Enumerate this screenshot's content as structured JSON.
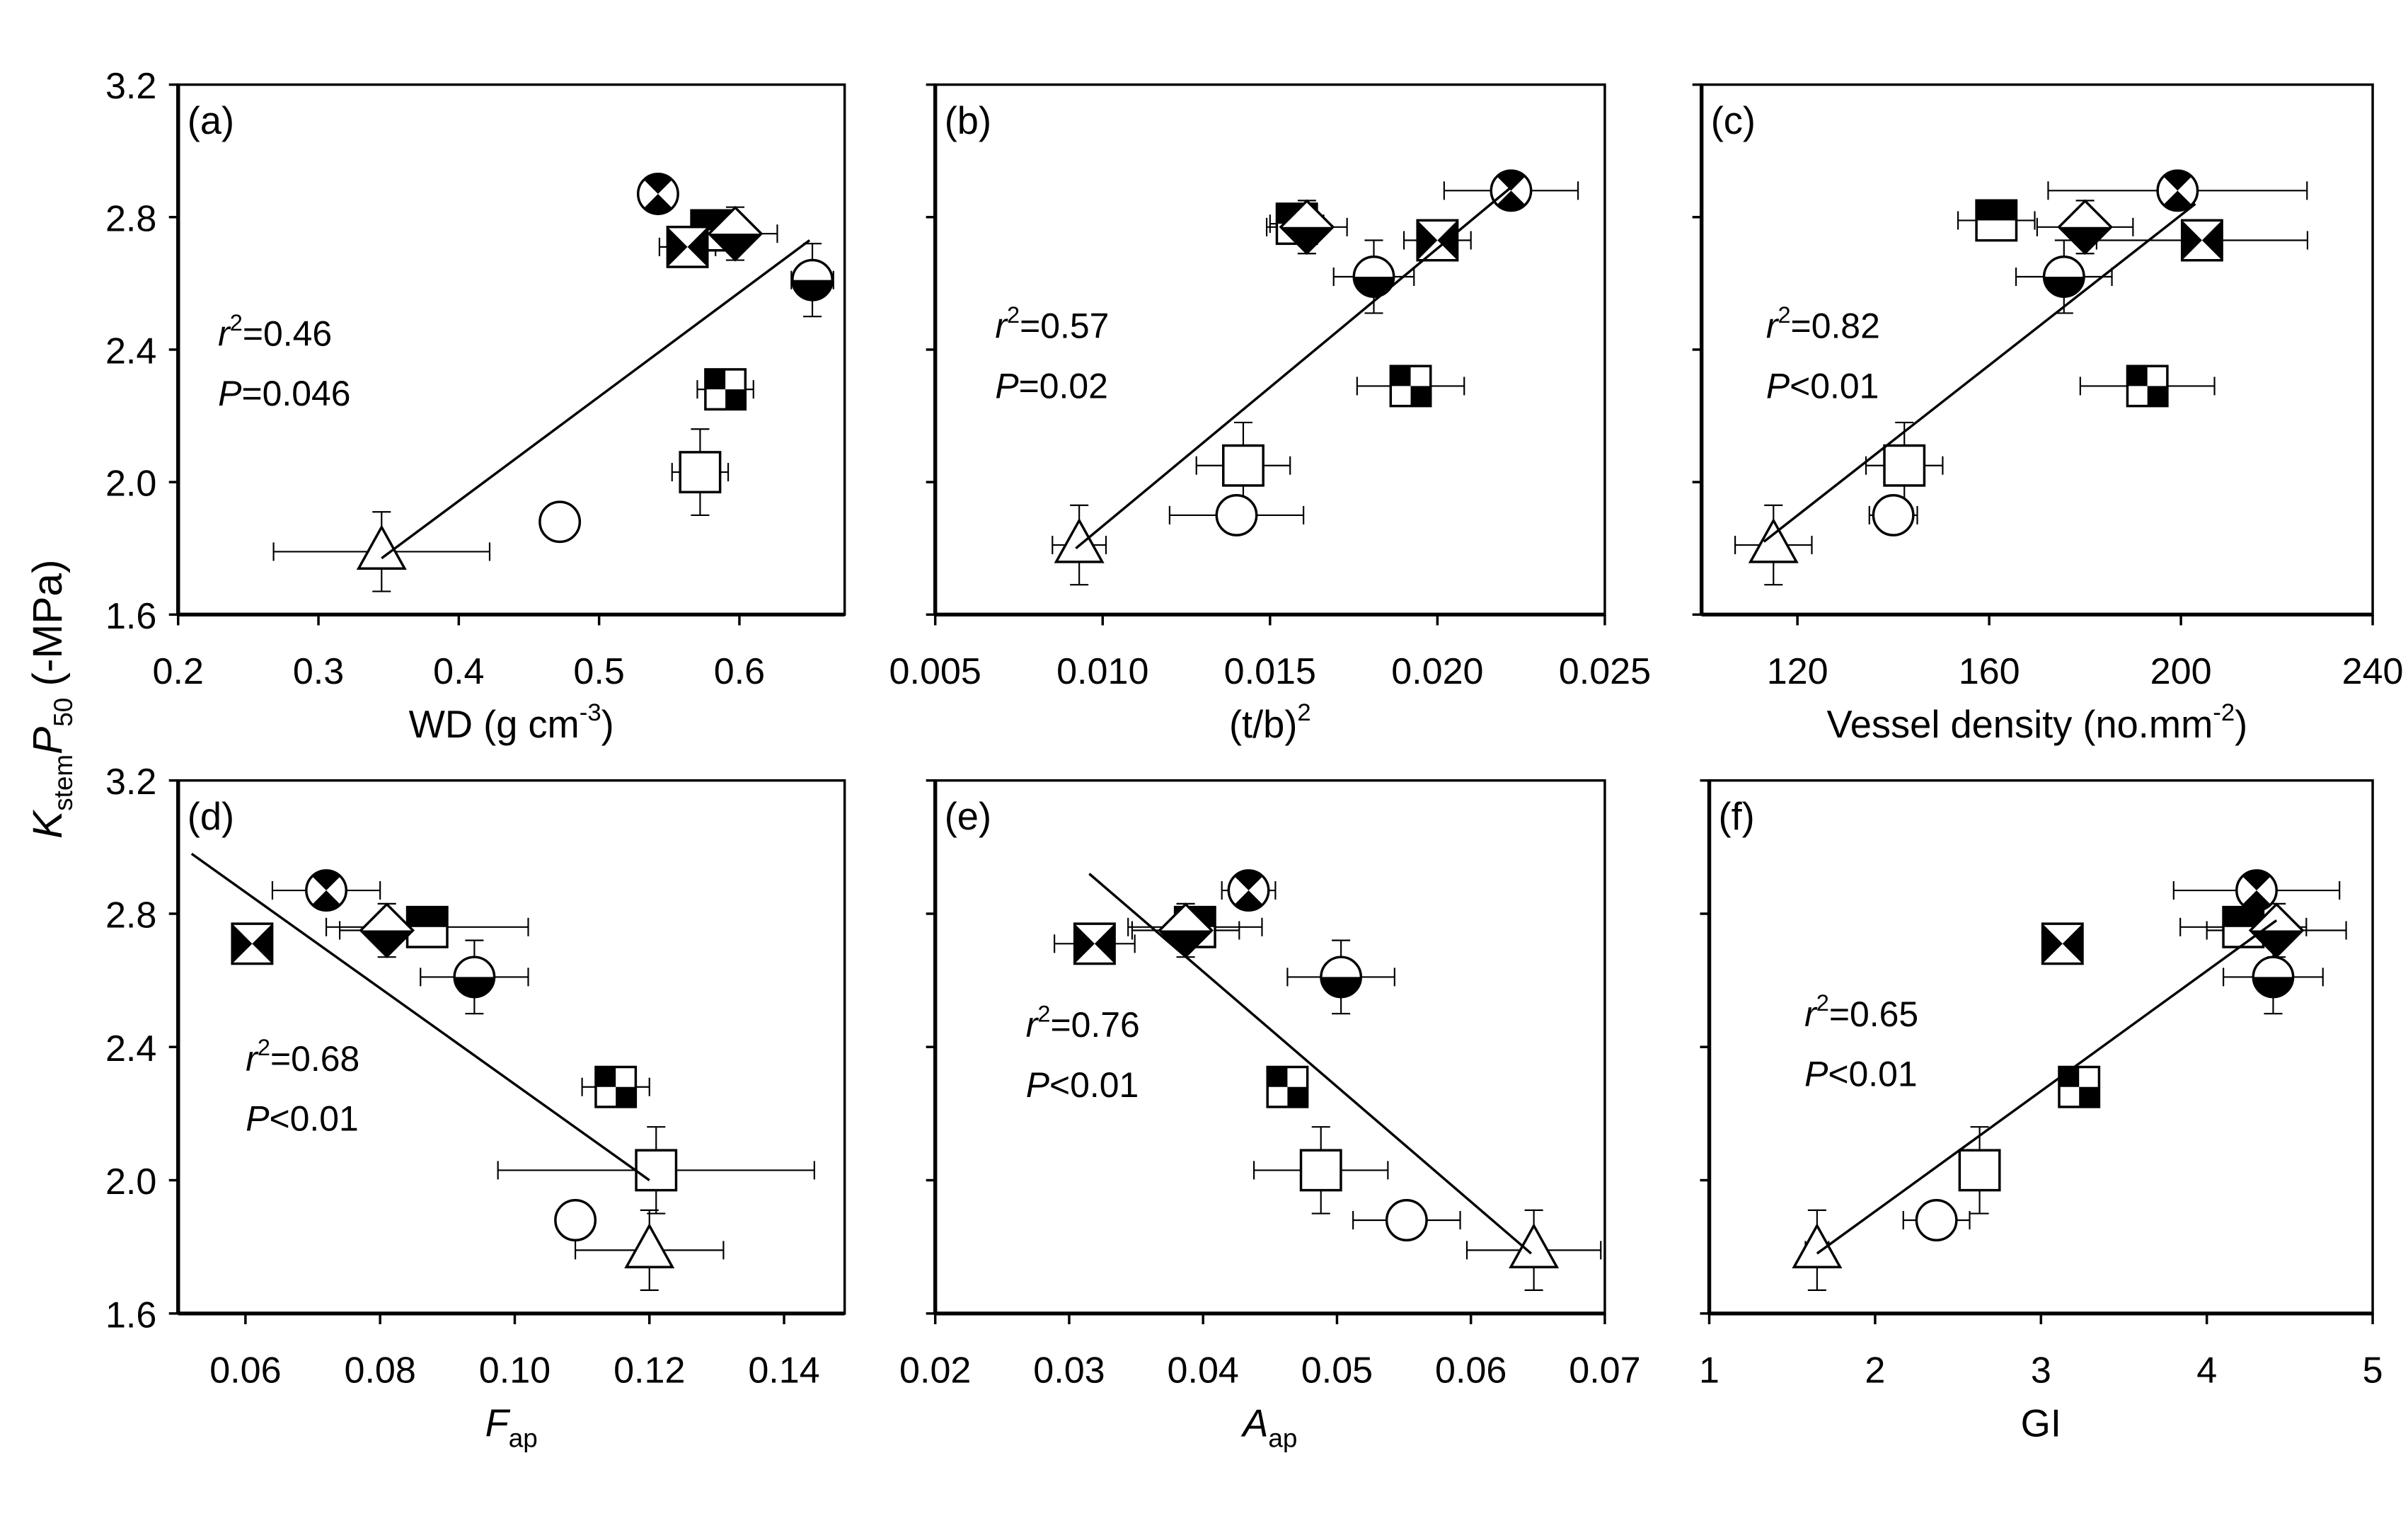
{
  "chart_data": {
    "type": "scatter",
    "ylabel": {
      "main": "K",
      "sub": "stem",
      "main2": "P",
      "sub2": "50",
      "rest": " (-MPa)"
    },
    "ylim": [
      1.6,
      3.2
    ],
    "yticks": [
      1.6,
      2.0,
      2.4,
      2.8,
      3.2
    ],
    "ytick_labels": [
      "1.6",
      "2.0",
      "2.4",
      "2.8",
      "3.2"
    ],
    "panels": [
      {
        "id": "a",
        "label": "(a)",
        "xlabel": "WD (g cm",
        "xlabel_sup": "-3",
        "xlabel_tail": ")",
        "xlim": [
          0.2,
          0.675
        ],
        "xticks": [
          0.2,
          0.3,
          0.4,
          0.5,
          0.6
        ],
        "xtick_labels": [
          "0.2",
          "0.3",
          "0.4",
          "0.5",
          "0.6"
        ],
        "r2": "=0.46",
        "p": "=0.046",
        "fit": [
          [
            0.345,
            1.77
          ],
          [
            0.65,
            2.73
          ]
        ],
        "points": [
          {
            "marker": "triangle",
            "x": 0.345,
            "y": 1.79,
            "xerr": 0.077,
            "yerr": 0.12
          },
          {
            "marker": "circle",
            "x": 0.472,
            "y": 1.88,
            "xerr": 0,
            "yerr": 0
          },
          {
            "marker": "square",
            "x": 0.572,
            "y": 2.03,
            "xerr": 0.02,
            "yerr": 0.13
          },
          {
            "marker": "checker-square",
            "x": 0.59,
            "y": 2.28,
            "xerr": 0.02,
            "yerr": 0.06
          },
          {
            "marker": "half-circle",
            "x": 0.652,
            "y": 2.61,
            "xerr": 0.015,
            "yerr": 0.11
          },
          {
            "marker": "top-half-square",
            "x": 0.58,
            "y": 2.76,
            "xerr": 0.01,
            "yerr": 0.05
          },
          {
            "marker": "half-diamond",
            "x": 0.597,
            "y": 2.75,
            "xerr": 0.03,
            "yerr": 0.08
          },
          {
            "marker": "bowtie-square",
            "x": 0.563,
            "y": 2.71,
            "xerr": 0.02,
            "yerr": 0.06
          },
          {
            "marker": "crossed-circle",
            "x": 0.542,
            "y": 2.87,
            "xerr": 0,
            "yerr": 0.05
          }
        ]
      },
      {
        "id": "b",
        "label": "(b)",
        "xlabel": "(t/b)",
        "xlabel_sup": "2",
        "xlabel_tail": "",
        "xlim": [
          0.005,
          0.025
        ],
        "xticks": [
          0.005,
          0.01,
          0.015,
          0.02,
          0.025
        ],
        "xtick_labels": [
          "0.005",
          "0.010",
          "0.015",
          "0.020",
          "0.025"
        ],
        "r2": "=0.57",
        "p": "=0.02",
        "fit": [
          [
            0.0092,
            1.8
          ],
          [
            0.0222,
            2.89
          ]
        ],
        "points": [
          {
            "marker": "triangle",
            "x": 0.0093,
            "y": 1.81,
            "xerr": 0.0008,
            "yerr": 0.12
          },
          {
            "marker": "circle",
            "x": 0.014,
            "y": 1.9,
            "xerr": 0.002,
            "yerr": 0
          },
          {
            "marker": "square",
            "x": 0.0142,
            "y": 2.05,
            "xerr": 0.0014,
            "yerr": 0.13
          },
          {
            "marker": "checker-square",
            "x": 0.0192,
            "y": 2.29,
            "xerr": 0.0016,
            "yerr": 0.06
          },
          {
            "marker": "half-circle",
            "x": 0.0181,
            "y": 2.62,
            "xerr": 0.0012,
            "yerr": 0.11
          },
          {
            "marker": "top-half-square",
            "x": 0.0158,
            "y": 2.78,
            "xerr": 0.0008,
            "yerr": 0.05
          },
          {
            "marker": "half-diamond",
            "x": 0.0161,
            "y": 2.77,
            "xerr": 0.0012,
            "yerr": 0.08
          },
          {
            "marker": "bowtie-square",
            "x": 0.02,
            "y": 2.73,
            "xerr": 0.001,
            "yerr": 0.06
          },
          {
            "marker": "crossed-circle",
            "x": 0.0222,
            "y": 2.88,
            "xerr": 0.002,
            "yerr": 0.05
          }
        ]
      },
      {
        "id": "c",
        "label": "(c)",
        "xlabel": "Vessel density (no.mm",
        "xlabel_sup": "-2",
        "xlabel_tail": ")",
        "xlim": [
          100,
          240
        ],
        "xticks": [
          120,
          160,
          200,
          240
        ],
        "xtick_labels": [
          "120",
          "160",
          "200",
          "240"
        ],
        "r2": "=0.82",
        "p": "<0.01",
        "fit": [
          [
            113,
            1.82
          ],
          [
            203,
            2.84
          ]
        ],
        "points": [
          {
            "marker": "triangle",
            "x": 115,
            "y": 1.81,
            "xerr": 8,
            "yerr": 0.12
          },
          {
            "marker": "circle",
            "x": 140,
            "y": 1.9,
            "xerr": 5,
            "yerr": 0
          },
          {
            "marker": "square",
            "x": 142.3,
            "y": 2.05,
            "xerr": 8,
            "yerr": 0.13
          },
          {
            "marker": "checker-square",
            "x": 193,
            "y": 2.29,
            "xerr": 14,
            "yerr": 0.06
          },
          {
            "marker": "half-circle",
            "x": 175.6,
            "y": 2.62,
            "xerr": 10,
            "yerr": 0.11
          },
          {
            "marker": "top-half-square",
            "x": 161.5,
            "y": 2.79,
            "xerr": 8,
            "yerr": 0.05
          },
          {
            "marker": "half-diamond",
            "x": 180,
            "y": 2.77,
            "xerr": 10,
            "yerr": 0.08
          },
          {
            "marker": "bowtie-square",
            "x": 204.4,
            "y": 2.73,
            "xerr": 22,
            "yerr": 0.06
          },
          {
            "marker": "crossed-circle",
            "x": 199.3,
            "y": 2.88,
            "xerr": 27,
            "yerr": 0.05
          }
        ]
      },
      {
        "id": "d",
        "label": "(d)",
        "xlabel": "F",
        "xlabel_sub": "ap",
        "xlim": [
          0.05,
          0.149
        ],
        "xticks": [
          0.06,
          0.08,
          0.1,
          0.12,
          0.14
        ],
        "xtick_labels": [
          "0.06",
          "0.08",
          "0.10",
          "0.12",
          "0.14"
        ],
        "r2": "=0.68",
        "p": "<0.01",
        "fit": [
          [
            0.052,
            2.98
          ],
          [
            0.12,
            2.0
          ]
        ],
        "points": [
          {
            "marker": "triangle",
            "x": 0.12,
            "y": 1.79,
            "xerr": 0.011,
            "yerr": 0.12
          },
          {
            "marker": "circle",
            "x": 0.109,
            "y": 1.88,
            "xerr": 0,
            "yerr": 0
          },
          {
            "marker": "square",
            "x": 0.121,
            "y": 2.03,
            "xerr": 0.0235,
            "yerr": 0.13
          },
          {
            "marker": "checker-square",
            "x": 0.115,
            "y": 2.28,
            "xerr": 0.005,
            "yerr": 0.06
          },
          {
            "marker": "half-circle",
            "x": 0.094,
            "y": 2.61,
            "xerr": 0.008,
            "yerr": 0.11
          },
          {
            "marker": "top-half-square",
            "x": 0.087,
            "y": 2.76,
            "xerr": 0.015,
            "yerr": 0.05
          },
          {
            "marker": "half-diamond",
            "x": 0.081,
            "y": 2.75,
            "xerr": 0.007,
            "yerr": 0.08
          },
          {
            "marker": "bowtie-square",
            "x": 0.061,
            "y": 2.71,
            "xerr": 0.001,
            "yerr": 0.06
          },
          {
            "marker": "crossed-circle",
            "x": 0.072,
            "y": 2.87,
            "xerr": 0.008,
            "yerr": 0.05
          }
        ]
      },
      {
        "id": "e",
        "label": "(e)",
        "xlabel": "A",
        "xlabel_sub": "ap",
        "xlim": [
          0.02,
          0.07
        ],
        "xticks": [
          0.02,
          0.03,
          0.04,
          0.05,
          0.06,
          0.07
        ],
        "xtick_labels": [
          "0.02",
          "0.03",
          "0.04",
          "0.05",
          "0.06",
          "0.07"
        ],
        "r2": "=0.76",
        "p": "<0.01",
        "fit": [
          [
            0.0315,
            2.92
          ],
          [
            0.0645,
            1.78
          ]
        ],
        "points": [
          {
            "marker": "triangle",
            "x": 0.0647,
            "y": 1.79,
            "xerr": 0.005,
            "yerr": 0.12
          },
          {
            "marker": "circle",
            "x": 0.0552,
            "y": 1.88,
            "xerr": 0.004,
            "yerr": 0
          },
          {
            "marker": "square",
            "x": 0.0488,
            "y": 2.03,
            "xerr": 0.005,
            "yerr": 0.13
          },
          {
            "marker": "checker-square",
            "x": 0.0463,
            "y": 2.28,
            "xerr": 0.001,
            "yerr": 0.06
          },
          {
            "marker": "half-circle",
            "x": 0.0503,
            "y": 2.61,
            "xerr": 0.004,
            "yerr": 0.11
          },
          {
            "marker": "top-half-square",
            "x": 0.0394,
            "y": 2.76,
            "xerr": 0.005,
            "yerr": 0.05
          },
          {
            "marker": "half-diamond",
            "x": 0.0387,
            "y": 2.75,
            "xerr": 0.004,
            "yerr": 0.08
          },
          {
            "marker": "bowtie-square",
            "x": 0.0319,
            "y": 2.71,
            "xerr": 0.003,
            "yerr": 0.06
          },
          {
            "marker": "crossed-circle",
            "x": 0.0434,
            "y": 2.87,
            "xerr": 0.002,
            "yerr": 0.05
          }
        ]
      },
      {
        "id": "f",
        "label": "(f)",
        "xlabel": "GI",
        "xlim": [
          1,
          5
        ],
        "xticks": [
          1,
          2,
          3,
          4,
          5
        ],
        "xtick_labels": [
          "1",
          "2",
          "3",
          "4",
          "5"
        ],
        "r2": "=0.65",
        "p": "<0.01",
        "fit": [
          [
            1.65,
            1.78
          ],
          [
            4.42,
            2.78
          ]
        ],
        "points": [
          {
            "marker": "triangle",
            "x": 1.65,
            "y": 1.79,
            "xerr": 0.07,
            "yerr": 0.12
          },
          {
            "marker": "circle",
            "x": 2.37,
            "y": 1.88,
            "xerr": 0.2,
            "yerr": 0
          },
          {
            "marker": "square",
            "x": 2.63,
            "y": 2.03,
            "xerr": 0,
            "yerr": 0.13
          },
          {
            "marker": "checker-square",
            "x": 3.23,
            "y": 2.28,
            "xerr": 0.12,
            "yerr": 0.06
          },
          {
            "marker": "half-circle",
            "x": 4.4,
            "y": 2.61,
            "xerr": 0.3,
            "yerr": 0.11
          },
          {
            "marker": "top-half-square",
            "x": 4.22,
            "y": 2.76,
            "xerr": 0.38,
            "yerr": 0.05
          },
          {
            "marker": "half-diamond",
            "x": 4.42,
            "y": 2.75,
            "xerr": 0.42,
            "yerr": 0.08
          },
          {
            "marker": "bowtie-square",
            "x": 3.13,
            "y": 2.71,
            "xerr": 0.09,
            "yerr": 0.06
          },
          {
            "marker": "crossed-circle",
            "x": 4.3,
            "y": 2.87,
            "xerr": 0.5,
            "yerr": 0.05
          }
        ]
      }
    ]
  }
}
